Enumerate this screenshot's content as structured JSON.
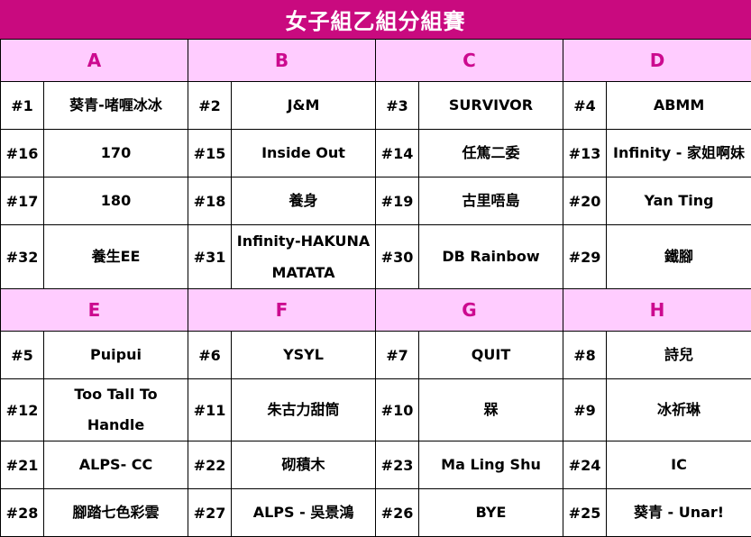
{
  "title": "女子組乙組分組賽",
  "sections": [
    {
      "groups": [
        "A",
        "B",
        "C",
        "D"
      ],
      "rows": [
        [
          [
            "#1",
            "葵青-啫喱冰冰"
          ],
          [
            "#2",
            "J&M"
          ],
          [
            "#3",
            "SURVIVOR"
          ],
          [
            "#4",
            "ABMM"
          ]
        ],
        [
          [
            "#16",
            "170"
          ],
          [
            "#15",
            "Inside Out"
          ],
          [
            "#14",
            "任篤二委"
          ],
          [
            "#13",
            "Infinity - 家姐啊妹"
          ]
        ],
        [
          [
            "#17",
            "180"
          ],
          [
            "#18",
            "養身"
          ],
          [
            "#19",
            "古里唔島"
          ],
          [
            "#20",
            "Yan Ting"
          ]
        ],
        [
          [
            "#32",
            "養生EE"
          ],
          [
            "#31",
            "Infinity-HAKUNA MATATA"
          ],
          [
            "#30",
            "DB Rainbow"
          ],
          [
            "#29",
            "鐵腳"
          ]
        ]
      ]
    },
    {
      "groups": [
        "E",
        "F",
        "G",
        "H"
      ],
      "rows": [
        [
          [
            "#5",
            "Puipui"
          ],
          [
            "#6",
            "YSYL"
          ],
          [
            "#7",
            "QUIT"
          ],
          [
            "#8",
            "詩兒"
          ]
        ],
        [
          [
            "#12",
            "Too Tall To Handle"
          ],
          [
            "#11",
            "朱古力甜筒"
          ],
          [
            "#10",
            "槑"
          ],
          [
            "#9",
            "冰祈琳"
          ]
        ],
        [
          [
            "#21",
            "ALPS- CC"
          ],
          [
            "#22",
            "砌積木"
          ],
          [
            "#23",
            "Ma Ling Shu"
          ],
          [
            "#24",
            "IC"
          ]
        ],
        [
          [
            "#28",
            "腳踏七色彩雲"
          ],
          [
            "#27",
            "ALPS - 吳景鴻"
          ],
          [
            "#26",
            "BYE"
          ],
          [
            "#25",
            "葵青 - Unar!"
          ]
        ]
      ]
    }
  ]
}
